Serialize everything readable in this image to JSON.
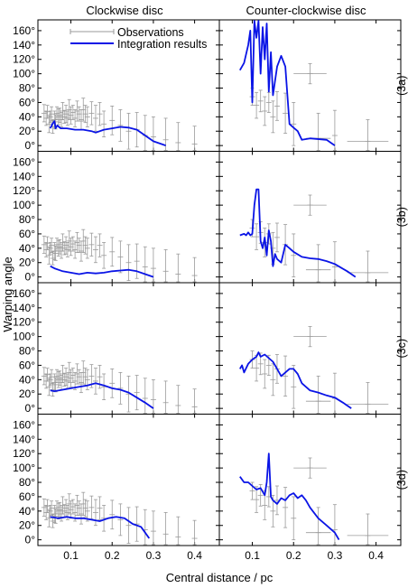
{
  "column_titles": [
    "Clockwise disc",
    "Counter-clockwise disc"
  ],
  "ylabel": "Warping angle",
  "xlabel": "Central distance / pc",
  "legend": {
    "observations": "Observations",
    "integration": "Integration results"
  },
  "colors": {
    "integration": "#0a14e6",
    "observations": "#9a9a9a",
    "frame": "#000000"
  },
  "chart_data": {
    "type": "line",
    "xlim": [
      0.02,
      0.46
    ],
    "ylim": [
      -8,
      175
    ],
    "x_ticks": [
      0.1,
      0.2,
      0.3,
      0.4
    ],
    "x_tick_labels": [
      "0.1",
      "0.2",
      "0.3",
      "0.4"
    ],
    "y_ticks": [
      0,
      20,
      40,
      60,
      80,
      100,
      120,
      140,
      160
    ],
    "y_tick_labels": [
      "0°",
      "20°",
      "40°",
      "60°",
      "80°",
      "100°",
      "120°",
      "140°",
      "160°"
    ],
    "row_labels": [
      "(3a)",
      "(3b)",
      "(3c)",
      "(3d)"
    ],
    "observations_cw": [
      [
        0.035,
        45,
        12
      ],
      [
        0.04,
        38,
        10
      ],
      [
        0.043,
        47,
        9
      ],
      [
        0.047,
        30,
        12
      ],
      [
        0.05,
        40,
        8
      ],
      [
        0.053,
        44,
        10
      ],
      [
        0.056,
        26,
        9
      ],
      [
        0.06,
        36,
        12
      ],
      [
        0.063,
        33,
        10
      ],
      [
        0.066,
        45,
        9
      ],
      [
        0.07,
        40,
        11
      ],
      [
        0.073,
        42,
        10
      ],
      [
        0.077,
        36,
        10
      ],
      [
        0.08,
        48,
        12
      ],
      [
        0.084,
        40,
        9
      ],
      [
        0.088,
        44,
        12
      ],
      [
        0.092,
        38,
        10
      ],
      [
        0.096,
        50,
        14
      ],
      [
        0.1,
        42,
        12
      ],
      [
        0.105,
        46,
        10
      ],
      [
        0.11,
        38,
        12
      ],
      [
        0.115,
        48,
        14
      ],
      [
        0.12,
        44,
        10
      ],
      [
        0.125,
        36,
        14
      ],
      [
        0.13,
        50,
        16
      ],
      [
        0.135,
        44,
        12
      ],
      [
        0.14,
        40,
        14
      ],
      [
        0.15,
        45,
        16
      ],
      [
        0.16,
        38,
        18
      ],
      [
        0.17,
        44,
        16
      ],
      [
        0.18,
        30,
        18
      ],
      [
        0.2,
        35,
        20
      ],
      [
        0.22,
        28,
        22
      ],
      [
        0.24,
        20,
        25
      ],
      [
        0.26,
        22,
        24
      ],
      [
        0.28,
        14,
        28
      ],
      [
        0.3,
        12,
        28
      ],
      [
        0.33,
        8,
        30
      ],
      [
        0.36,
        4,
        28
      ],
      [
        0.4,
        2,
        25
      ]
    ],
    "observations_ccw": [
      [
        0.1,
        68,
        12
      ],
      [
        0.11,
        56,
        18
      ],
      [
        0.12,
        62,
        15
      ],
      [
        0.13,
        48,
        20
      ],
      [
        0.14,
        60,
        14
      ],
      [
        0.15,
        40,
        22
      ],
      [
        0.16,
        55,
        20
      ],
      [
        0.18,
        45,
        28
      ],
      [
        0.2,
        30,
        30
      ],
      [
        0.24,
        100,
        14
      ],
      [
        0.26,
        10,
        35
      ],
      [
        0.3,
        14,
        35
      ],
      [
        0.38,
        6,
        30
      ]
    ],
    "observations_ccw_xerr": [
      [
        0.24,
        0.04
      ],
      [
        0.38,
        0.05
      ],
      [
        0.26,
        0.03
      ]
    ],
    "panels": [
      {
        "label": "(3a)",
        "cw": [
          [
            0.05,
            24
          ],
          [
            0.055,
            30
          ],
          [
            0.06,
            34
          ],
          [
            0.063,
            24
          ],
          [
            0.067,
            28
          ],
          [
            0.075,
            24
          ],
          [
            0.09,
            24
          ],
          [
            0.11,
            22
          ],
          [
            0.13,
            22
          ],
          [
            0.15,
            20
          ],
          [
            0.16,
            18
          ],
          [
            0.18,
            22
          ],
          [
            0.2,
            24
          ],
          [
            0.22,
            26
          ],
          [
            0.24,
            25
          ],
          [
            0.26,
            22
          ],
          [
            0.28,
            14
          ],
          [
            0.3,
            6
          ],
          [
            0.32,
            2
          ],
          [
            0.33,
            0
          ]
        ],
        "ccw": [
          [
            0.07,
            105
          ],
          [
            0.08,
            115
          ],
          [
            0.09,
            140
          ],
          [
            0.095,
            160
          ],
          [
            0.1,
            60
          ],
          [
            0.105,
            175
          ],
          [
            0.11,
            150
          ],
          [
            0.115,
            175
          ],
          [
            0.12,
            100
          ],
          [
            0.125,
            165
          ],
          [
            0.13,
            120
          ],
          [
            0.135,
            170
          ],
          [
            0.14,
            75
          ],
          [
            0.145,
            130
          ],
          [
            0.15,
            70
          ],
          [
            0.16,
            110
          ],
          [
            0.17,
            125
          ],
          [
            0.18,
            110
          ],
          [
            0.19,
            30
          ],
          [
            0.2,
            25
          ],
          [
            0.21,
            20
          ],
          [
            0.22,
            8
          ],
          [
            0.24,
            10
          ],
          [
            0.28,
            8
          ],
          [
            0.3,
            0
          ]
        ]
      },
      {
        "label": "(3b)",
        "cw": [
          [
            0.05,
            15
          ],
          [
            0.06,
            12
          ],
          [
            0.07,
            10
          ],
          [
            0.08,
            8
          ],
          [
            0.1,
            6
          ],
          [
            0.12,
            4
          ],
          [
            0.14,
            6
          ],
          [
            0.16,
            5
          ],
          [
            0.18,
            6
          ],
          [
            0.2,
            8
          ],
          [
            0.22,
            9
          ],
          [
            0.24,
            10
          ],
          [
            0.26,
            8
          ],
          [
            0.28,
            4
          ],
          [
            0.3,
            0
          ]
        ],
        "ccw": [
          [
            0.07,
            58
          ],
          [
            0.08,
            60
          ],
          [
            0.085,
            58
          ],
          [
            0.09,
            62
          ],
          [
            0.095,
            58
          ],
          [
            0.1,
            60
          ],
          [
            0.105,
            100
          ],
          [
            0.11,
            122
          ],
          [
            0.115,
            122
          ],
          [
            0.12,
            50
          ],
          [
            0.125,
            40
          ],
          [
            0.13,
            55
          ],
          [
            0.135,
            30
          ],
          [
            0.14,
            65
          ],
          [
            0.145,
            50
          ],
          [
            0.15,
            15
          ],
          [
            0.155,
            32
          ],
          [
            0.16,
            25
          ],
          [
            0.17,
            20
          ],
          [
            0.18,
            45
          ],
          [
            0.19,
            40
          ],
          [
            0.2,
            35
          ],
          [
            0.22,
            28
          ],
          [
            0.24,
            26
          ],
          [
            0.26,
            25
          ],
          [
            0.28,
            22
          ],
          [
            0.3,
            18
          ],
          [
            0.33,
            8
          ],
          [
            0.35,
            0
          ]
        ]
      },
      {
        "label": "(3c)",
        "cw": [
          [
            0.05,
            25
          ],
          [
            0.06,
            24
          ],
          [
            0.08,
            26
          ],
          [
            0.1,
            28
          ],
          [
            0.12,
            30
          ],
          [
            0.14,
            32
          ],
          [
            0.16,
            35
          ],
          [
            0.18,
            32
          ],
          [
            0.2,
            28
          ],
          [
            0.22,
            26
          ],
          [
            0.24,
            22
          ],
          [
            0.26,
            15
          ],
          [
            0.28,
            8
          ],
          [
            0.3,
            0
          ]
        ],
        "ccw": [
          [
            0.07,
            55
          ],
          [
            0.075,
            60
          ],
          [
            0.08,
            50
          ],
          [
            0.09,
            62
          ],
          [
            0.1,
            68
          ],
          [
            0.11,
            72
          ],
          [
            0.115,
            78
          ],
          [
            0.12,
            72
          ],
          [
            0.13,
            75
          ],
          [
            0.14,
            70
          ],
          [
            0.15,
            65
          ],
          [
            0.16,
            55
          ],
          [
            0.17,
            45
          ],
          [
            0.18,
            50
          ],
          [
            0.19,
            55
          ],
          [
            0.2,
            55
          ],
          [
            0.21,
            48
          ],
          [
            0.22,
            35
          ],
          [
            0.24,
            25
          ],
          [
            0.26,
            22
          ],
          [
            0.28,
            18
          ],
          [
            0.3,
            15
          ],
          [
            0.32,
            8
          ],
          [
            0.34,
            0
          ]
        ]
      },
      {
        "label": "(3d)",
        "cw": [
          [
            0.05,
            32
          ],
          [
            0.07,
            30
          ],
          [
            0.09,
            32
          ],
          [
            0.11,
            30
          ],
          [
            0.13,
            30
          ],
          [
            0.15,
            28
          ],
          [
            0.17,
            26
          ],
          [
            0.19,
            30
          ],
          [
            0.21,
            32
          ],
          [
            0.23,
            30
          ],
          [
            0.25,
            22
          ],
          [
            0.27,
            18
          ],
          [
            0.28,
            10
          ],
          [
            0.29,
            2
          ]
        ],
        "ccw": [
          [
            0.07,
            88
          ],
          [
            0.08,
            80
          ],
          [
            0.09,
            80
          ],
          [
            0.1,
            75
          ],
          [
            0.11,
            70
          ],
          [
            0.12,
            72
          ],
          [
            0.13,
            62
          ],
          [
            0.135,
            80
          ],
          [
            0.14,
            120
          ],
          [
            0.145,
            60
          ],
          [
            0.15,
            55
          ],
          [
            0.16,
            50
          ],
          [
            0.17,
            58
          ],
          [
            0.18,
            55
          ],
          [
            0.19,
            62
          ],
          [
            0.2,
            65
          ],
          [
            0.21,
            58
          ],
          [
            0.22,
            62
          ],
          [
            0.23,
            55
          ],
          [
            0.24,
            45
          ],
          [
            0.26,
            30
          ],
          [
            0.28,
            20
          ],
          [
            0.3,
            10
          ],
          [
            0.31,
            0
          ]
        ]
      }
    ]
  }
}
